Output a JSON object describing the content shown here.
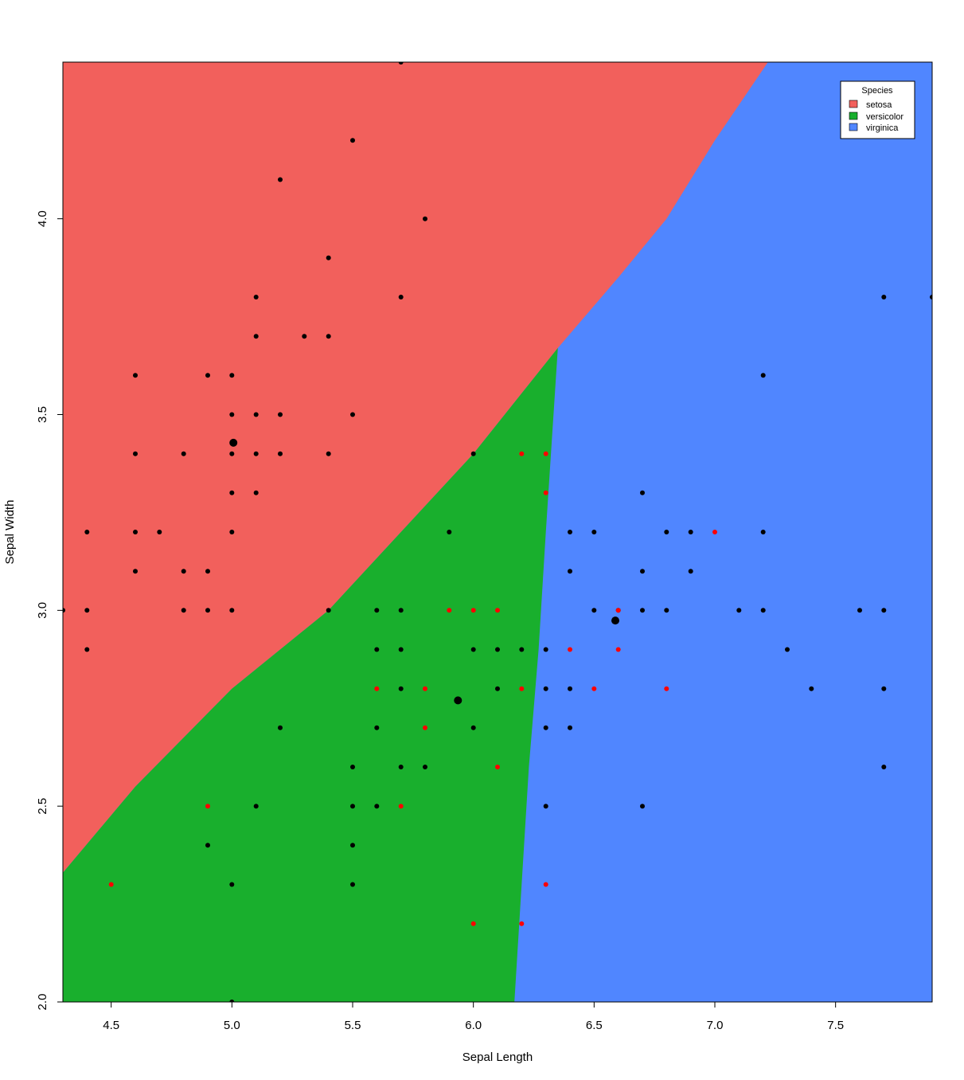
{
  "chart_data": {
    "type": "scatter",
    "title": "",
    "xlabel": "Sepal Length",
    "ylabel": "Sepal Width",
    "xlim": [
      4.3,
      7.9
    ],
    "ylim": [
      2.0,
      4.4
    ],
    "x_ticks": [
      "4.5",
      "5.0",
      "5.5",
      "6.0",
      "6.5",
      "7.0",
      "7.5"
    ],
    "y_ticks": [
      "2.0",
      "2.5",
      "3.0",
      "3.5",
      "4.0"
    ],
    "grid": false,
    "legend": {
      "title": "Species",
      "position": "top-right",
      "entries": [
        {
          "label": "setosa",
          "color": "#F2605C"
        },
        {
          "label": "versicolor",
          "color": "#19AF2D"
        },
        {
          "label": "virginica",
          "color": "#5086FF"
        }
      ]
    },
    "decision_regions": {
      "setosa_boundary": [
        [
          4.3,
          2.33
        ],
        [
          4.6,
          2.55
        ],
        [
          5.0,
          2.8
        ],
        [
          5.4,
          3.0
        ],
        [
          5.7,
          3.2
        ],
        [
          6.0,
          3.4
        ],
        [
          6.35,
          3.67
        ]
      ],
      "setosa_virginica_boundary": [
        [
          6.35,
          3.67
        ],
        [
          6.6,
          3.85
        ],
        [
          6.8,
          4.0
        ],
        [
          7.0,
          4.2
        ],
        [
          7.22,
          4.4
        ]
      ],
      "versicolor_virginica_boundary": [
        [
          6.17,
          2.0
        ],
        [
          6.2,
          2.3
        ],
        [
          6.23,
          2.6
        ],
        [
          6.27,
          2.9
        ],
        [
          6.3,
          3.2
        ],
        [
          6.35,
          3.67
        ]
      ]
    },
    "series": [
      {
        "name": "correct",
        "color": "#000000",
        "points": [
          [
            4.3,
            3.0
          ],
          [
            4.4,
            3.2
          ],
          [
            4.4,
            3.0
          ],
          [
            4.4,
            2.9
          ],
          [
            4.6,
            3.6
          ],
          [
            4.6,
            3.4
          ],
          [
            4.6,
            3.2
          ],
          [
            4.6,
            3.1
          ],
          [
            4.7,
            3.2
          ],
          [
            4.8,
            3.4
          ],
          [
            4.8,
            3.1
          ],
          [
            4.8,
            3.0
          ],
          [
            4.9,
            3.6
          ],
          [
            4.9,
            3.1
          ],
          [
            4.9,
            3.0
          ],
          [
            4.9,
            2.4
          ],
          [
            5.0,
            3.6
          ],
          [
            5.0,
            3.5
          ],
          [
            5.0,
            3.4
          ],
          [
            5.0,
            3.3
          ],
          [
            5.0,
            3.2
          ],
          [
            5.0,
            3.0
          ],
          [
            5.0,
            2.3
          ],
          [
            5.0,
            2.0
          ],
          [
            5.1,
            3.8
          ],
          [
            5.1,
            3.7
          ],
          [
            5.1,
            3.5
          ],
          [
            5.1,
            3.4
          ],
          [
            5.1,
            3.3
          ],
          [
            5.1,
            2.5
          ],
          [
            5.2,
            4.1
          ],
          [
            5.2,
            3.5
          ],
          [
            5.2,
            3.4
          ],
          [
            5.2,
            2.7
          ],
          [
            5.3,
            3.7
          ],
          [
            5.4,
            3.9
          ],
          [
            5.4,
            3.7
          ],
          [
            5.4,
            3.4
          ],
          [
            5.4,
            3.0
          ],
          [
            5.5,
            4.2
          ],
          [
            5.5,
            3.5
          ],
          [
            5.5,
            2.6
          ],
          [
            5.5,
            2.5
          ],
          [
            5.5,
            2.4
          ],
          [
            5.5,
            2.3
          ],
          [
            5.6,
            3.0
          ],
          [
            5.6,
            2.9
          ],
          [
            5.6,
            2.7
          ],
          [
            5.6,
            2.5
          ],
          [
            5.7,
            4.4
          ],
          [
            5.7,
            3.8
          ],
          [
            5.7,
            3.0
          ],
          [
            5.7,
            2.9
          ],
          [
            5.7,
            2.8
          ],
          [
            5.7,
            2.6
          ],
          [
            5.8,
            4.0
          ],
          [
            5.8,
            2.6
          ],
          [
            5.9,
            3.2
          ],
          [
            6.0,
            3.4
          ],
          [
            6.0,
            2.9
          ],
          [
            6.0,
            2.7
          ],
          [
            6.1,
            2.9
          ],
          [
            6.1,
            2.8
          ],
          [
            6.2,
            2.9
          ],
          [
            6.3,
            2.9
          ],
          [
            6.3,
            2.8
          ],
          [
            6.3,
            2.7
          ],
          [
            6.3,
            2.5
          ],
          [
            6.4,
            3.2
          ],
          [
            6.4,
            3.1
          ],
          [
            6.4,
            2.8
          ],
          [
            6.4,
            2.7
          ],
          [
            6.5,
            3.2
          ],
          [
            6.5,
            3.0
          ],
          [
            6.6,
            3.0
          ],
          [
            6.7,
            3.3
          ],
          [
            6.7,
            3.1
          ],
          [
            6.7,
            3.0
          ],
          [
            6.7,
            2.5
          ],
          [
            6.8,
            3.2
          ],
          [
            6.8,
            3.0
          ],
          [
            6.9,
            3.2
          ],
          [
            6.9,
            3.1
          ],
          [
            7.1,
            3.0
          ],
          [
            7.2,
            3.6
          ],
          [
            7.2,
            3.2
          ],
          [
            7.2,
            3.0
          ],
          [
            7.3,
            2.9
          ],
          [
            7.4,
            2.8
          ],
          [
            7.6,
            3.0
          ],
          [
            7.7,
            3.8
          ],
          [
            7.7,
            3.0
          ],
          [
            7.7,
            2.8
          ],
          [
            7.7,
            2.6
          ],
          [
            7.9,
            3.8
          ]
        ]
      },
      {
        "name": "misclassified",
        "color": "#FF0000",
        "points": [
          [
            4.5,
            2.3
          ],
          [
            4.9,
            2.5
          ],
          [
            5.6,
            2.8
          ],
          [
            5.7,
            2.5
          ],
          [
            5.8,
            2.8
          ],
          [
            5.8,
            2.7
          ],
          [
            5.9,
            3.0
          ],
          [
            6.0,
            3.0
          ],
          [
            6.0,
            2.2
          ],
          [
            6.1,
            3.0
          ],
          [
            6.1,
            2.6
          ],
          [
            6.2,
            3.4
          ],
          [
            6.2,
            2.8
          ],
          [
            6.2,
            2.2
          ],
          [
            6.3,
            3.4
          ],
          [
            6.3,
            3.3
          ],
          [
            6.3,
            2.3
          ],
          [
            6.4,
            2.9
          ],
          [
            6.5,
            2.8
          ],
          [
            6.6,
            3.0
          ],
          [
            6.6,
            2.9
          ],
          [
            6.8,
            2.8
          ],
          [
            7.0,
            3.2
          ]
        ]
      },
      {
        "name": "centroids",
        "color": "#000000",
        "points": [
          [
            5.006,
            3.428
          ],
          [
            5.936,
            2.77
          ],
          [
            6.588,
            2.974
          ]
        ]
      }
    ]
  }
}
